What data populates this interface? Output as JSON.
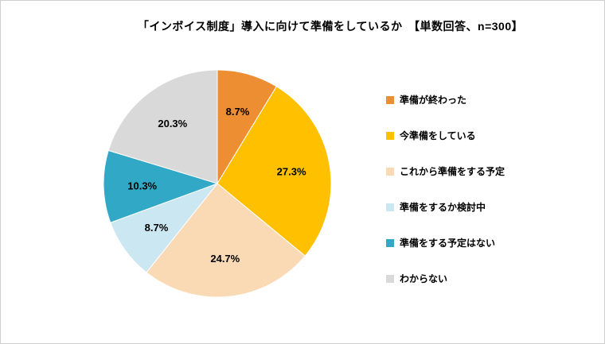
{
  "chart_data": {
    "type": "pie",
    "title": "「インボイス制度」導入に向けて準備をしているか　【単数回答、n=300】",
    "labels": [
      "準備が終わった",
      "今準備をしている",
      "これから準備をする予定",
      "準備をするか検討中",
      "準備をする予定はない",
      "わからない"
    ],
    "values": [
      8.7,
      27.3,
      24.7,
      8.7,
      10.3,
      20.3
    ],
    "colors": [
      "#ED8E33",
      "#FFC000",
      "#FAD9B5",
      "#CBE7F1",
      "#31A8C6",
      "#D9D9D9"
    ],
    "data_label_format": "{value}%",
    "start_angle_deg": 0,
    "direction": "clockwise",
    "legend_position": "right",
    "grid": false
  }
}
